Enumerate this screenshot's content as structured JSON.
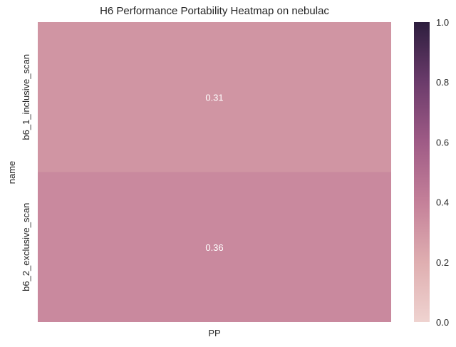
{
  "chart_data": {
    "type": "heatmap",
    "title": "H6 Performance Portability Heatmap on nebulac",
    "xlabel": "",
    "ylabel": "name",
    "x_categories": [
      "PP"
    ],
    "y_categories": [
      "b6_1_inclusive_scan",
      "b6_2_exclusive_scan"
    ],
    "values": [
      [
        0.31
      ],
      [
        0.36
      ]
    ],
    "value_labels": [
      [
        "0.31"
      ],
      [
        "0.36"
      ]
    ],
    "colorbar": {
      "range": [
        0.0,
        1.0
      ],
      "ticks": [
        "0.0",
        "0.2",
        "0.4",
        "0.6",
        "0.8",
        "1.0"
      ],
      "colors": [
        "#efd3d0",
        "#dfaeb0",
        "#c48099",
        "#9f5b86",
        "#6b3b6b",
        "#2d1e3e"
      ]
    },
    "grid": false
  }
}
